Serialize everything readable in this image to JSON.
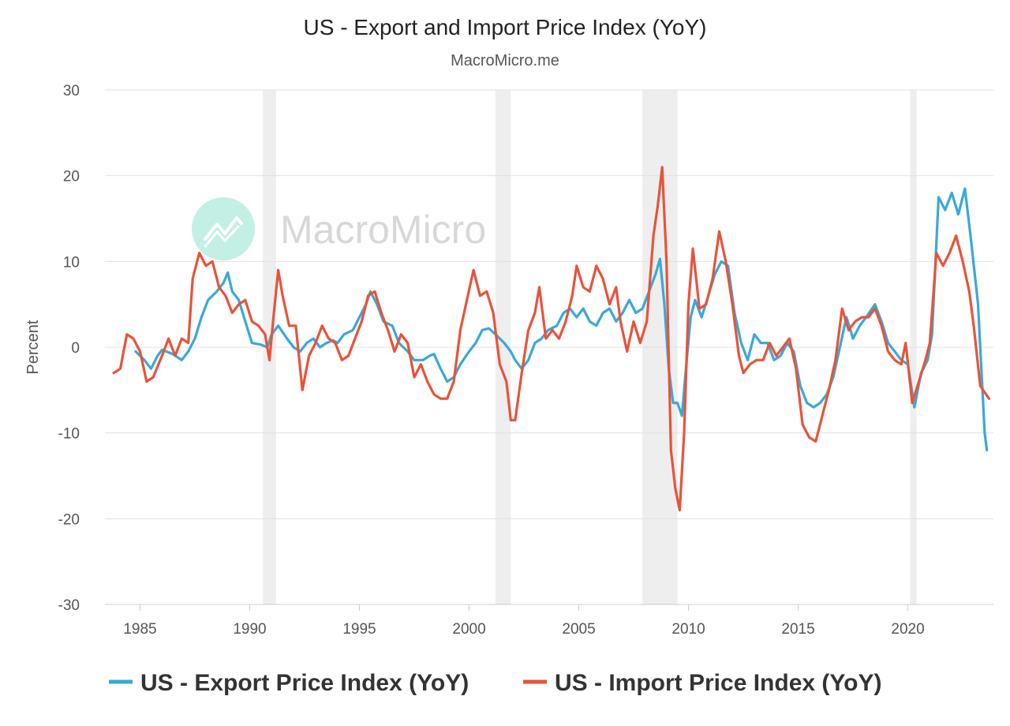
{
  "chart_data": {
    "type": "line",
    "title": "US - Export and Import Price Index (YoY)",
    "subtitle": "MacroMicro.me",
    "watermark": "MacroMicro",
    "ylabel": "Percent",
    "xlabel": "",
    "ylim": [
      -30,
      30
    ],
    "xlim": [
      1983.4,
      2023.9
    ],
    "yticks": [
      30,
      20,
      10,
      0,
      -10,
      -20,
      -30
    ],
    "xticks": [
      1985,
      1990,
      1995,
      2000,
      2005,
      2010,
      2015,
      2020
    ],
    "grid": true,
    "legend_position": "bottom",
    "colors": {
      "grid": "#e0e0e0",
      "recession": "#eeeeee",
      "watermark": "#bdeee3"
    },
    "recessions": [
      [
        1990.6,
        1991.2
      ],
      [
        2001.2,
        2001.9
      ],
      [
        2007.9,
        2009.5
      ],
      [
        2020.1,
        2020.4
      ]
    ],
    "series": [
      {
        "name": "US - Export Price Index (YoY)",
        "color": "#3aa8d8",
        "points": [
          [
            1984.8,
            -0.5
          ],
          [
            1985.2,
            -1.5
          ],
          [
            1985.5,
            -2.5
          ],
          [
            1985.8,
            -1.0
          ],
          [
            1986.0,
            -0.3
          ],
          [
            1986.5,
            -0.8
          ],
          [
            1986.9,
            -1.5
          ],
          [
            1987.2,
            -0.5
          ],
          [
            1987.5,
            1.0
          ],
          [
            1987.8,
            3.5
          ],
          [
            1988.1,
            5.5
          ],
          [
            1988.5,
            6.5
          ],
          [
            1988.8,
            7.5
          ],
          [
            1989.0,
            8.7
          ],
          [
            1989.2,
            6.5
          ],
          [
            1989.5,
            5.5
          ],
          [
            1989.8,
            3.0
          ],
          [
            1990.1,
            0.5
          ],
          [
            1990.5,
            0.3
          ],
          [
            1990.8,
            0.0
          ],
          [
            1991.0,
            1.5
          ],
          [
            1991.3,
            2.5
          ],
          [
            1991.7,
            1.0
          ],
          [
            1992.0,
            0.0
          ],
          [
            1992.3,
            -0.5
          ],
          [
            1992.6,
            0.5
          ],
          [
            1992.9,
            1.0
          ],
          [
            1993.2,
            0.0
          ],
          [
            1993.5,
            0.5
          ],
          [
            1993.8,
            0.8
          ],
          [
            1994.0,
            0.5
          ],
          [
            1994.3,
            1.5
          ],
          [
            1994.7,
            2.0
          ],
          [
            1995.0,
            3.5
          ],
          [
            1995.3,
            5.0
          ],
          [
            1995.5,
            6.5
          ],
          [
            1995.8,
            5.0
          ],
          [
            1996.1,
            3.0
          ],
          [
            1996.5,
            2.5
          ],
          [
            1996.8,
            0.5
          ],
          [
            1997.2,
            -0.5
          ],
          [
            1997.5,
            -1.5
          ],
          [
            1997.9,
            -1.5
          ],
          [
            1998.2,
            -1.0
          ],
          [
            1998.4,
            -0.8
          ],
          [
            1998.7,
            -2.5
          ],
          [
            1999.0,
            -4.0
          ],
          [
            1999.3,
            -3.5
          ],
          [
            1999.6,
            -2.0
          ],
          [
            2000.0,
            -0.5
          ],
          [
            2000.3,
            0.5
          ],
          [
            2000.6,
            2.0
          ],
          [
            2000.9,
            2.2
          ],
          [
            2001.2,
            1.5
          ],
          [
            2001.6,
            0.5
          ],
          [
            2001.9,
            -0.5
          ],
          [
            2002.1,
            -1.5
          ],
          [
            2002.4,
            -2.5
          ],
          [
            2002.7,
            -1.5
          ],
          [
            2003.0,
            0.5
          ],
          [
            2003.3,
            1.0
          ],
          [
            2003.6,
            2.0
          ],
          [
            2004.0,
            2.5
          ],
          [
            2004.3,
            4.0
          ],
          [
            2004.6,
            4.5
          ],
          [
            2004.9,
            3.5
          ],
          [
            2005.2,
            4.5
          ],
          [
            2005.5,
            3.0
          ],
          [
            2005.8,
            2.5
          ],
          [
            2006.1,
            4.0
          ],
          [
            2006.4,
            4.5
          ],
          [
            2006.7,
            3.0
          ],
          [
            2007.0,
            4.0
          ],
          [
            2007.3,
            5.5
          ],
          [
            2007.6,
            4.0
          ],
          [
            2007.9,
            4.5
          ],
          [
            2008.2,
            6.5
          ],
          [
            2008.5,
            8.5
          ],
          [
            2008.7,
            10.3
          ],
          [
            2008.9,
            5.0
          ],
          [
            2009.1,
            -2.5
          ],
          [
            2009.3,
            -6.5
          ],
          [
            2009.5,
            -6.5
          ],
          [
            2009.7,
            -8.0
          ],
          [
            2009.9,
            -2.0
          ],
          [
            2010.1,
            3.5
          ],
          [
            2010.3,
            5.5
          ],
          [
            2010.6,
            3.5
          ],
          [
            2010.9,
            6.0
          ],
          [
            2011.2,
            8.5
          ],
          [
            2011.5,
            10.0
          ],
          [
            2011.8,
            9.5
          ],
          [
            2012.1,
            4.0
          ],
          [
            2012.4,
            0.5
          ],
          [
            2012.7,
            -1.5
          ],
          [
            2013.0,
            1.5
          ],
          [
            2013.3,
            0.5
          ],
          [
            2013.6,
            0.5
          ],
          [
            2013.9,
            -1.5
          ],
          [
            2014.2,
            -1.0
          ],
          [
            2014.5,
            0.5
          ],
          [
            2014.8,
            -0.5
          ],
          [
            2015.1,
            -4.5
          ],
          [
            2015.4,
            -6.5
          ],
          [
            2015.7,
            -7.0
          ],
          [
            2016.0,
            -6.5
          ],
          [
            2016.3,
            -5.5
          ],
          [
            2016.6,
            -3.5
          ],
          [
            2016.9,
            0.0
          ],
          [
            2017.2,
            3.5
          ],
          [
            2017.5,
            1.0
          ],
          [
            2017.8,
            2.5
          ],
          [
            2018.1,
            3.5
          ],
          [
            2018.5,
            5.0
          ],
          [
            2018.8,
            3.0
          ],
          [
            2019.1,
            0.5
          ],
          [
            2019.4,
            -0.5
          ],
          [
            2019.7,
            -1.5
          ],
          [
            2020.0,
            -2.0
          ],
          [
            2020.3,
            -7.0
          ],
          [
            2020.6,
            -3.0
          ],
          [
            2020.9,
            -1.5
          ],
          [
            2021.1,
            1.5
          ],
          [
            2021.4,
            17.5
          ],
          [
            2021.7,
            16.0
          ],
          [
            2022.0,
            18.0
          ],
          [
            2022.3,
            15.5
          ],
          [
            2022.6,
            18.5
          ],
          [
            2022.9,
            12.0
          ],
          [
            2023.2,
            5.0
          ],
          [
            2023.5,
            -10.0
          ],
          [
            2023.6,
            -12.0
          ]
        ]
      },
      {
        "name": "US - Import Price Index (YoY)",
        "color": "#e8533a",
        "points": [
          [
            1983.8,
            -3.0
          ],
          [
            1984.1,
            -2.5
          ],
          [
            1984.4,
            1.5
          ],
          [
            1984.7,
            1.0
          ],
          [
            1985.0,
            -0.5
          ],
          [
            1985.3,
            -4.0
          ],
          [
            1985.6,
            -3.5
          ],
          [
            1986.0,
            -1.0
          ],
          [
            1986.3,
            1.0
          ],
          [
            1986.6,
            -1.0
          ],
          [
            1986.9,
            1.0
          ],
          [
            1987.2,
            0.5
          ],
          [
            1987.4,
            8.0
          ],
          [
            1987.7,
            11.0
          ],
          [
            1988.0,
            9.5
          ],
          [
            1988.3,
            10.0
          ],
          [
            1988.6,
            7.0
          ],
          [
            1988.9,
            6.0
          ],
          [
            1989.2,
            4.0
          ],
          [
            1989.5,
            5.0
          ],
          [
            1989.8,
            5.5
          ],
          [
            1990.1,
            3.0
          ],
          [
            1990.4,
            2.5
          ],
          [
            1990.7,
            1.5
          ],
          [
            1990.9,
            -1.5
          ],
          [
            1991.1,
            4.0
          ],
          [
            1991.3,
            9.0
          ],
          [
            1991.5,
            6.0
          ],
          [
            1991.8,
            2.5
          ],
          [
            1992.1,
            2.5
          ],
          [
            1992.4,
            -5.0
          ],
          [
            1992.7,
            -1.0
          ],
          [
            1993.0,
            0.5
          ],
          [
            1993.3,
            2.5
          ],
          [
            1993.6,
            1.0
          ],
          [
            1993.9,
            0.5
          ],
          [
            1994.2,
            -1.5
          ],
          [
            1994.5,
            -1.0
          ],
          [
            1994.8,
            1.0
          ],
          [
            1995.1,
            3.0
          ],
          [
            1995.4,
            6.0
          ],
          [
            1995.7,
            6.5
          ],
          [
            1996.0,
            4.0
          ],
          [
            1996.3,
            2.0
          ],
          [
            1996.6,
            -0.5
          ],
          [
            1996.9,
            1.5
          ],
          [
            1997.2,
            0.5
          ],
          [
            1997.5,
            -3.5
          ],
          [
            1997.8,
            -2.0
          ],
          [
            1998.1,
            -4.0
          ],
          [
            1998.4,
            -5.5
          ],
          [
            1998.7,
            -6.0
          ],
          [
            1999.0,
            -6.0
          ],
          [
            1999.3,
            -4.0
          ],
          [
            1999.6,
            2.0
          ],
          [
            1999.9,
            5.5
          ],
          [
            2000.2,
            9.0
          ],
          [
            2000.5,
            6.0
          ],
          [
            2000.8,
            6.5
          ],
          [
            2001.1,
            4.0
          ],
          [
            2001.4,
            -2.0
          ],
          [
            2001.7,
            -4.0
          ],
          [
            2001.9,
            -8.5
          ],
          [
            2002.1,
            -8.5
          ],
          [
            2002.4,
            -3.0
          ],
          [
            2002.7,
            2.0
          ],
          [
            2003.0,
            4.0
          ],
          [
            2003.2,
            7.0
          ],
          [
            2003.5,
            1.0
          ],
          [
            2003.8,
            2.0
          ],
          [
            2004.1,
            1.0
          ],
          [
            2004.4,
            3.0
          ],
          [
            2004.7,
            6.0
          ],
          [
            2004.9,
            9.5
          ],
          [
            2005.2,
            7.0
          ],
          [
            2005.5,
            6.5
          ],
          [
            2005.8,
            9.5
          ],
          [
            2006.1,
            8.0
          ],
          [
            2006.4,
            5.0
          ],
          [
            2006.7,
            7.0
          ],
          [
            2006.9,
            3.0
          ],
          [
            2007.2,
            -0.5
          ],
          [
            2007.5,
            3.0
          ],
          [
            2007.8,
            0.5
          ],
          [
            2008.1,
            3.0
          ],
          [
            2008.4,
            13.0
          ],
          [
            2008.6,
            16.5
          ],
          [
            2008.8,
            21.0
          ],
          [
            2009.0,
            10.0
          ],
          [
            2009.2,
            -12.0
          ],
          [
            2009.4,
            -16.5
          ],
          [
            2009.6,
            -19.0
          ],
          [
            2009.8,
            -10.0
          ],
          [
            2010.0,
            5.0
          ],
          [
            2010.2,
            11.5
          ],
          [
            2010.5,
            4.5
          ],
          [
            2010.8,
            5.0
          ],
          [
            2011.1,
            8.0
          ],
          [
            2011.4,
            13.5
          ],
          [
            2011.7,
            10.0
          ],
          [
            2012.0,
            5.0
          ],
          [
            2012.3,
            -1.0
          ],
          [
            2012.5,
            -3.0
          ],
          [
            2012.8,
            -2.0
          ],
          [
            2013.1,
            -1.5
          ],
          [
            2013.4,
            -1.5
          ],
          [
            2013.7,
            0.5
          ],
          [
            2014.0,
            -1.0
          ],
          [
            2014.3,
            0.0
          ],
          [
            2014.6,
            1.0
          ],
          [
            2014.9,
            -2.5
          ],
          [
            2015.2,
            -9.0
          ],
          [
            2015.5,
            -10.5
          ],
          [
            2015.8,
            -11.0
          ],
          [
            2016.1,
            -8.0
          ],
          [
            2016.4,
            -5.0
          ],
          [
            2016.7,
            -1.5
          ],
          [
            2017.0,
            4.5
          ],
          [
            2017.3,
            2.0
          ],
          [
            2017.6,
            3.0
          ],
          [
            2017.9,
            3.5
          ],
          [
            2018.2,
            3.5
          ],
          [
            2018.5,
            4.5
          ],
          [
            2018.8,
            2.5
          ],
          [
            2019.1,
            -0.5
          ],
          [
            2019.4,
            -1.5
          ],
          [
            2019.7,
            -2.0
          ],
          [
            2019.9,
            0.5
          ],
          [
            2020.2,
            -6.5
          ],
          [
            2020.5,
            -4.0
          ],
          [
            2020.8,
            -1.5
          ],
          [
            2021.0,
            0.5
          ],
          [
            2021.3,
            11.0
          ],
          [
            2021.6,
            9.5
          ],
          [
            2021.9,
            11.0
          ],
          [
            2022.2,
            13.0
          ],
          [
            2022.5,
            10.0
          ],
          [
            2022.8,
            6.5
          ],
          [
            2023.0,
            2.5
          ],
          [
            2023.3,
            -4.5
          ],
          [
            2023.7,
            -6.0
          ]
        ]
      }
    ]
  }
}
